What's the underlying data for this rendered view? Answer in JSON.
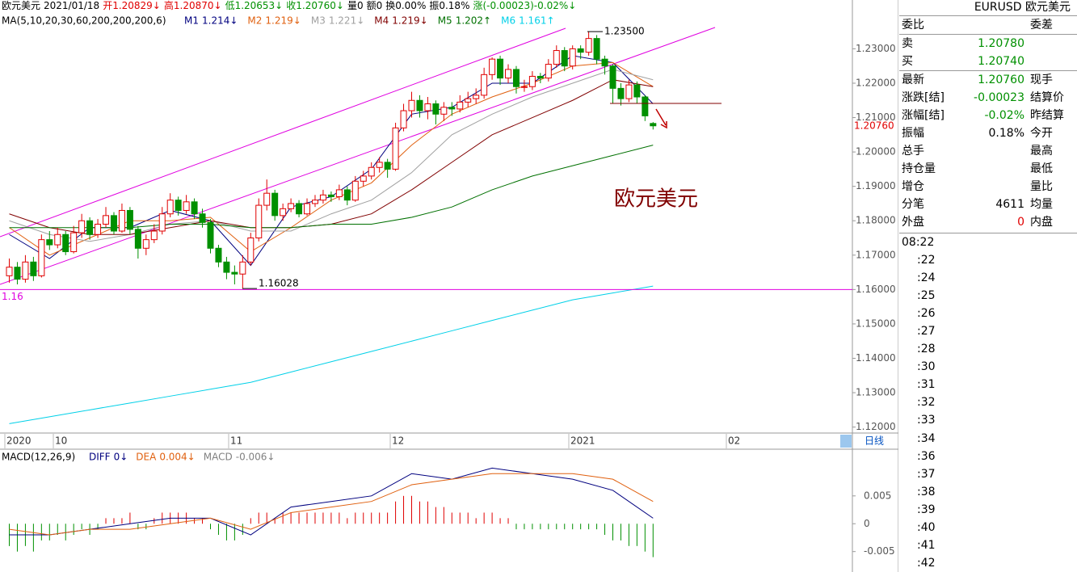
{
  "header": [
    {
      "text": "欧元美元",
      "color": "#000000"
    },
    {
      "text": "2021/01/18",
      "color": "#000000"
    },
    {
      "text": "开1.20829↓",
      "color": "#e00000"
    },
    {
      "text": "高1.20870↓",
      "color": "#e00000"
    },
    {
      "text": "低1.20653↓",
      "color": "#009000"
    },
    {
      "text": "收1.20760↓",
      "color": "#009000"
    },
    {
      "text": "量0",
      "color": "#000000"
    },
    {
      "text": "额0",
      "color": "#000000"
    },
    {
      "text": "换0.00%",
      "color": "#000000"
    },
    {
      "text": "振0.18%",
      "color": "#000000"
    },
    {
      "text": "涨(-0.00023)-0.02%↓",
      "color": "#009000"
    }
  ],
  "chart_data": [
    {
      "type": "candlestick",
      "title": "MA(5,10,20,30,60,200,200,200,6)",
      "annotation": "欧元美元",
      "ylim": [
        1.1185,
        1.2355
      ],
      "yticks": [
        {
          "value": 1.12,
          "label": "1.12000"
        },
        {
          "value": 1.13,
          "label": "1.13000"
        },
        {
          "value": 1.14,
          "label": "1.14000"
        },
        {
          "value": 1.15,
          "label": "1.15000"
        },
        {
          "value": 1.16,
          "label": "1.16000"
        },
        {
          "value": 1.17,
          "label": "1.17000"
        },
        {
          "value": 1.18,
          "label": "1.18000"
        },
        {
          "value": 1.19,
          "label": "1.19000"
        },
        {
          "value": 1.2,
          "label": "1.20000"
        },
        {
          "value": 1.21,
          "label": "1.21000"
        },
        {
          "value": 1.22,
          "label": "1.22000"
        },
        {
          "value": 1.23,
          "label": "1.23000"
        }
      ],
      "date_labels": [
        "2020",
        "10",
        "11",
        "12",
        "2021",
        "02"
      ],
      "period_button": "日线",
      "up_color": "#e00000",
      "down_color": "#009000",
      "hline": {
        "value": 1.16,
        "label": "1.16"
      },
      "high_mark": {
        "value": 1.235,
        "label": "1.23500"
      },
      "low_mark": {
        "value": 1.16028,
        "label": "1.16028"
      },
      "last": {
        "value": 1.2076,
        "label": "1.20760"
      },
      "candles": [
        [
          1.164,
          1.169,
          1.162,
          1.1665
        ],
        [
          1.1665,
          1.168,
          1.1615,
          1.163
        ],
        [
          1.163,
          1.17,
          1.162,
          1.168
        ],
        [
          1.168,
          1.1695,
          1.1625,
          1.164
        ],
        [
          1.164,
          1.176,
          1.1635,
          1.1745
        ],
        [
          1.1745,
          1.177,
          1.1715,
          1.173
        ],
        [
          1.173,
          1.178,
          1.172,
          1.176
        ],
        [
          1.176,
          1.177,
          1.17,
          1.171
        ],
        [
          1.171,
          1.1785,
          1.1705,
          1.1765
        ],
        [
          1.1765,
          1.182,
          1.175,
          1.18
        ],
        [
          1.18,
          1.181,
          1.1745,
          1.176
        ],
        [
          1.176,
          1.1805,
          1.175,
          1.179
        ],
        [
          1.179,
          1.184,
          1.178,
          1.1815
        ],
        [
          1.1815,
          1.1825,
          1.176,
          1.177
        ],
        [
          1.177,
          1.185,
          1.1765,
          1.183
        ],
        [
          1.183,
          1.184,
          1.176,
          1.1775
        ],
        [
          1.1775,
          1.1785,
          1.169,
          1.172
        ],
        [
          1.172,
          1.176,
          1.17,
          1.1745
        ],
        [
          1.1745,
          1.179,
          1.1735,
          1.177
        ],
        [
          1.177,
          1.184,
          1.176,
          1.182
        ],
        [
          1.182,
          1.188,
          1.181,
          1.186
        ],
        [
          1.186,
          1.187,
          1.1815,
          1.183
        ],
        [
          1.183,
          1.1875,
          1.182,
          1.1855
        ],
        [
          1.1855,
          1.1865,
          1.1805,
          1.182
        ],
        [
          1.182,
          1.1835,
          1.178,
          1.1795
        ],
        [
          1.1795,
          1.1805,
          1.1705,
          1.172
        ],
        [
          1.172,
          1.173,
          1.1665,
          1.168
        ],
        [
          1.168,
          1.1695,
          1.163,
          1.165
        ],
        [
          1.165,
          1.167,
          1.1615,
          1.1645
        ],
        [
          1.1645,
          1.17,
          1.16028,
          1.168
        ],
        [
          1.168,
          1.1765,
          1.167,
          1.175
        ],
        [
          1.175,
          1.1865,
          1.174,
          1.1845
        ],
        [
          1.1845,
          1.192,
          1.183,
          1.188
        ],
        [
          1.188,
          1.189,
          1.18,
          1.1815
        ],
        [
          1.1815,
          1.185,
          1.18,
          1.1835
        ],
        [
          1.1835,
          1.1865,
          1.1825,
          1.185
        ],
        [
          1.185,
          1.186,
          1.181,
          1.182
        ],
        [
          1.182,
          1.1865,
          1.1815,
          1.185
        ],
        [
          1.185,
          1.1875,
          1.184,
          1.186
        ],
        [
          1.186,
          1.189,
          1.185,
          1.1875
        ],
        [
          1.1875,
          1.1885,
          1.1855,
          1.187
        ],
        [
          1.187,
          1.1905,
          1.186,
          1.189
        ],
        [
          1.189,
          1.19,
          1.1845,
          1.186
        ],
        [
          1.186,
          1.193,
          1.1855,
          1.1915
        ],
        [
          1.1915,
          1.1945,
          1.19,
          1.193
        ],
        [
          1.193,
          1.197,
          1.192,
          1.1955
        ],
        [
          1.1955,
          1.1985,
          1.194,
          1.197
        ],
        [
          1.197,
          1.198,
          1.1925,
          1.195
        ],
        [
          1.195,
          1.2085,
          1.1945,
          1.207
        ],
        [
          1.207,
          1.214,
          1.206,
          1.212
        ],
        [
          1.212,
          1.2175,
          1.21,
          1.215
        ],
        [
          1.215,
          1.2165,
          1.21,
          1.212
        ],
        [
          1.212,
          1.216,
          1.2095,
          1.214
        ],
        [
          1.214,
          1.215,
          1.208,
          1.211
        ],
        [
          1.211,
          1.2145,
          1.209,
          1.213
        ],
        [
          1.213,
          1.2145,
          1.2105,
          1.2125
        ],
        [
          1.2125,
          1.2165,
          1.2115,
          1.2145
        ],
        [
          1.2145,
          1.2175,
          1.213,
          1.2155
        ],
        [
          1.2155,
          1.2185,
          1.214,
          1.2165
        ],
        [
          1.2165,
          1.2245,
          1.2155,
          1.2225
        ],
        [
          1.2225,
          1.2275,
          1.221,
          1.227
        ],
        [
          1.227,
          1.228,
          1.2195,
          1.2215
        ],
        [
          1.2215,
          1.2255,
          1.22,
          1.224
        ],
        [
          1.224,
          1.225,
          1.217,
          1.219
        ],
        [
          1.219,
          1.221,
          1.2175,
          1.219
        ],
        [
          1.219,
          1.2235,
          1.218,
          1.222
        ],
        [
          1.222,
          1.223,
          1.22,
          1.2215
        ],
        [
          1.2215,
          1.227,
          1.2205,
          1.2255
        ],
        [
          1.2255,
          1.231,
          1.2245,
          1.2295
        ],
        [
          1.2295,
          1.2305,
          1.2235,
          1.225
        ],
        [
          1.225,
          1.231,
          1.224,
          1.23
        ],
        [
          1.23,
          1.231,
          1.227,
          1.229
        ],
        [
          1.229,
          1.235,
          1.228,
          1.233
        ],
        [
          1.233,
          1.234,
          1.2255,
          1.227
        ],
        [
          1.227,
          1.228,
          1.2225,
          1.225
        ],
        [
          1.225,
          1.2255,
          1.214,
          1.2185
        ],
        [
          1.2185,
          1.22,
          1.2135,
          1.2155
        ],
        [
          1.2155,
          1.221,
          1.2145,
          1.2195
        ],
        [
          1.2195,
          1.2205,
          1.214,
          1.216
        ],
        [
          1.216,
          1.2165,
          1.209,
          1.2105
        ],
        [
          1.20829,
          1.2087,
          1.20653,
          1.2076
        ]
      ],
      "ma_x": [
        0,
        5,
        10,
        15,
        20,
        25,
        30,
        35,
        40,
        45,
        50,
        55,
        60,
        65,
        70,
        75,
        80
      ],
      "series": [
        {
          "name": "M1",
          "label": "1.214↓",
          "color": "#00007f",
          "values": [
            1.176,
            1.169,
            1.178,
            1.178,
            1.183,
            1.18,
            1.167,
            1.184,
            1.187,
            1.195,
            1.211,
            1.213,
            1.22,
            1.22,
            1.228,
            1.226,
            1.214
          ]
        },
        {
          "name": "M2",
          "label": "1.219↓",
          "color": "#e0600f",
          "values": [
            1.178,
            1.17,
            1.175,
            1.18,
            1.18,
            1.181,
            1.171,
            1.178,
            1.186,
            1.191,
            1.202,
            1.211,
            1.216,
            1.22,
            1.225,
            1.226,
            1.219
          ]
        },
        {
          "name": "M3",
          "label": "1.221↓",
          "color": "#a0a0a0",
          "values": [
            1.18,
            1.176,
            1.174,
            1.176,
            1.179,
            1.18,
            1.177,
            1.177,
            1.182,
            1.186,
            1.194,
            1.205,
            1.211,
            1.216,
            1.22,
            1.224,
            1.221
          ]
        },
        {
          "name": "M4",
          "label": "1.219↓",
          "color": "#800000",
          "values": [
            1.182,
            1.178,
            1.176,
            1.176,
            1.178,
            1.18,
            1.178,
            1.178,
            1.179,
            1.182,
            1.189,
            1.197,
            1.205,
            1.21,
            1.215,
            1.221,
            1.219
          ]
        },
        {
          "name": "M5",
          "label": "1.202↑",
          "color": "#007000",
          "values": [
            1.178,
            1.178,
            1.178,
            1.178,
            1.179,
            1.179,
            1.178,
            1.178,
            1.179,
            1.179,
            1.181,
            1.184,
            1.189,
            1.193,
            1.196,
            1.199,
            1.202
          ]
        },
        {
          "name": "M6",
          "label": "1.161↑",
          "color": "#00d0e8",
          "values": [
            1.121,
            1.123,
            1.125,
            1.127,
            1.129,
            1.131,
            1.133,
            1.136,
            1.139,
            1.142,
            1.145,
            1.148,
            1.151,
            1.154,
            1.157,
            1.159,
            1.161
          ]
        }
      ]
    },
    {
      "type": "macd",
      "title": "MACD(12,26,9)",
      "ylim": [
        -0.0078,
        0.0131
      ],
      "yticks": [
        0.005,
        0,
        -0.005
      ],
      "x": [
        0,
        5,
        10,
        15,
        20,
        25,
        30,
        35,
        40,
        45,
        50,
        55,
        60,
        65,
        70,
        75,
        80
      ],
      "series": [
        {
          "name": "DIFF",
          "label": "0↓",
          "color": "#00007f",
          "values": [
            -0.002,
            -0.002,
            -0.001,
            0,
            0.001,
            0.001,
            -0.002,
            0.003,
            0.004,
            0.005,
            0.009,
            0.008,
            0.01,
            0.009,
            0.008,
            0.006,
            0.001
          ]
        },
        {
          "name": "DEA",
          "label": "0.004↓",
          "color": "#e0600f",
          "values": [
            -0.001,
            -0.002,
            -0.001,
            -0.001,
            0,
            0.001,
            -0.001,
            0.002,
            0.003,
            0.004,
            0.007,
            0.008,
            0.009,
            0.009,
            0.009,
            0.008,
            0.004
          ]
        }
      ],
      "histogram": {
        "name": "MACD",
        "label": "-0.006↓",
        "color": "#808080",
        "values": [
          -0.004,
          -0.005,
          -0.004,
          -0.005,
          -0.003,
          -0.003,
          -0.002,
          -0.003,
          -0.002,
          -0.001,
          -0.002,
          -0.001,
          0.001,
          0.001,
          0.001,
          0.002,
          -0.001,
          -0.001,
          0.001,
          0.002,
          0.002,
          0.002,
          0.002,
          0.001,
          0.001,
          -0.001,
          -0.002,
          -0.003,
          -0.003,
          -0.002,
          0.001,
          0.002,
          0.002,
          0.001,
          0.002,
          0.002,
          0.002,
          0.002,
          0.002,
          0.002,
          0.002,
          0.002,
          0.001,
          0.002,
          0.002,
          0.002,
          0.002,
          0.002,
          0.004,
          0.005,
          0.005,
          0.004,
          0.004,
          0.003,
          0.003,
          0.002,
          0.002,
          0.002,
          0.001,
          0.002,
          0.002,
          0.001,
          0.001,
          -0.001,
          -0.001,
          -0.001,
          -0.001,
          -0.001,
          -0.001,
          -0.001,
          -0.001,
          -0.001,
          -0.001,
          -0.001,
          -0.002,
          -0.003,
          -0.003,
          -0.004,
          -0.004,
          -0.005,
          -0.006
        ]
      }
    }
  ],
  "quote": {
    "symbol": "EURUSD 欧元美元",
    "rows": [
      {
        "label": "委比",
        "label2": "委差"
      },
      {
        "label": "卖",
        "value": "1.20780",
        "color": "#009000"
      },
      {
        "label": "买",
        "value": "1.20740",
        "color": "#009000"
      },
      {
        "label": "最新",
        "value": "1.20760",
        "color": "#009000",
        "label2": "现手"
      },
      {
        "label": "涨跌[结]",
        "value": "-0.00023",
        "color": "#009000",
        "label2": "结算价"
      },
      {
        "label": "涨幅[结]",
        "value": "-0.02%",
        "color": "#009000",
        "label2": "昨结算"
      },
      {
        "label": "振幅",
        "value": "0.18%",
        "color": "#000000",
        "label2": "今开"
      },
      {
        "label": "总手",
        "label2": "最高"
      },
      {
        "label": "持仓量",
        "label2": "最低"
      },
      {
        "label": "增仓",
        "label2": "量比"
      },
      {
        "label": "分笔",
        "value": "4611",
        "color": "#000000",
        "label2": "均量"
      },
      {
        "label": "外盘",
        "value": "0",
        "color": "#e00000",
        "label2": "内盘"
      }
    ],
    "times": [
      "08:22",
      ":22",
      ":24",
      ":25",
      ":26",
      ":27",
      ":28",
      ":30",
      ":31",
      ":32",
      ":33",
      ":34",
      ":36",
      ":37",
      ":38",
      ":39",
      ":40",
      ":41",
      ":42"
    ]
  }
}
